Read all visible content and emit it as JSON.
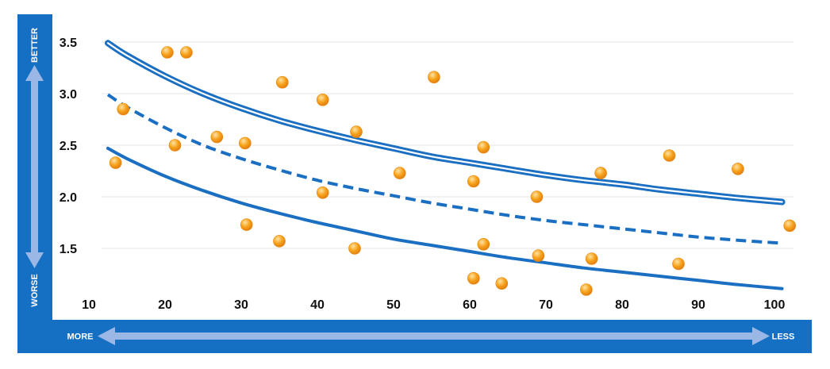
{
  "colors": {
    "panel": "#1570c4",
    "arrow": "#9bb7e6",
    "curve": "#1b6fc2",
    "dot_fill": "#f7a21b",
    "dot_highlight": "#ffe3a3",
    "grid": "#e6e6e6"
  },
  "left_axis": {
    "top_label": "BETTER",
    "bottom_label": "WORSE"
  },
  "bottom_axis": {
    "left_label": "MORE",
    "right_label": "LESS"
  },
  "chart_data": {
    "type": "scatter",
    "title": "",
    "xlabel": "",
    "ylabel": "",
    "xlim": [
      10,
      102
    ],
    "ylim": [
      1.0,
      3.6
    ],
    "grid": true,
    "x_ticks": [
      10,
      20,
      30,
      40,
      50,
      60,
      70,
      80,
      90,
      100
    ],
    "y_ticks": [
      3.5,
      3.0,
      2.5,
      2.0,
      1.5
    ],
    "series": [
      {
        "style": "scatter",
        "points": [
          [
            13.5,
            2.33
          ],
          [
            14.5,
            2.85
          ],
          [
            20.3,
            3.4
          ],
          [
            21.3,
            2.5
          ],
          [
            22.8,
            3.4
          ],
          [
            26.8,
            2.58
          ],
          [
            30.5,
            2.52
          ],
          [
            30.7,
            1.73
          ],
          [
            35.0,
            1.57
          ],
          [
            35.4,
            3.11
          ],
          [
            40.7,
            2.94
          ],
          [
            40.7,
            2.04
          ],
          [
            44.9,
            1.5
          ],
          [
            45.1,
            2.63
          ],
          [
            50.8,
            2.23
          ],
          [
            55.3,
            3.16
          ],
          [
            60.5,
            2.15
          ],
          [
            60.5,
            1.21
          ],
          [
            61.8,
            1.54
          ],
          [
            61.8,
            2.48
          ],
          [
            64.2,
            1.16
          ],
          [
            68.8,
            2.0
          ],
          [
            69.0,
            1.43
          ],
          [
            75.3,
            1.1
          ],
          [
            76.0,
            1.4
          ],
          [
            77.2,
            2.23
          ],
          [
            86.2,
            2.4
          ],
          [
            87.4,
            1.35
          ],
          [
            95.2,
            2.27
          ],
          [
            102.0,
            1.72
          ]
        ]
      },
      {
        "style": "double-line",
        "x": [
          12.5,
          15,
          20,
          25,
          30,
          35,
          40,
          45,
          50,
          55,
          60,
          65,
          70,
          75,
          80,
          85,
          90,
          95,
          101
        ],
        "y": [
          3.49,
          3.37,
          3.17,
          3.0,
          2.86,
          2.74,
          2.64,
          2.55,
          2.47,
          2.39,
          2.33,
          2.27,
          2.21,
          2.16,
          2.12,
          2.07,
          2.03,
          1.99,
          1.95
        ]
      },
      {
        "style": "dashed-line",
        "x": [
          12.5,
          15,
          20,
          25,
          30,
          35,
          40,
          45,
          50,
          55,
          60,
          65,
          70,
          75,
          80,
          85,
          90,
          95,
          101
        ],
        "y": [
          2.99,
          2.87,
          2.67,
          2.5,
          2.37,
          2.26,
          2.16,
          2.08,
          2.01,
          1.94,
          1.88,
          1.82,
          1.77,
          1.73,
          1.69,
          1.65,
          1.61,
          1.58,
          1.55
        ]
      },
      {
        "style": "solid-line",
        "x": [
          12.5,
          15,
          20,
          25,
          30,
          35,
          40,
          45,
          50,
          55,
          60,
          65,
          70,
          75,
          80,
          85,
          90,
          95,
          101
        ],
        "y": [
          2.47,
          2.37,
          2.2,
          2.06,
          1.94,
          1.84,
          1.75,
          1.67,
          1.59,
          1.53,
          1.47,
          1.41,
          1.36,
          1.31,
          1.27,
          1.23,
          1.19,
          1.15,
          1.11
        ]
      }
    ]
  }
}
